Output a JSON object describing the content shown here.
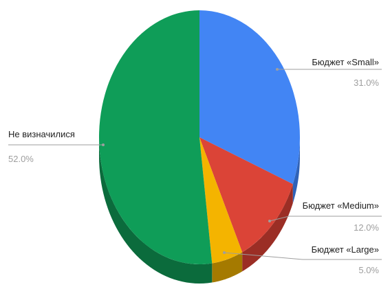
{
  "chart_data": {
    "type": "pie",
    "style": "3d",
    "title": "",
    "slices": [
      {
        "label": "Бюджет «Small»",
        "value": 31.0,
        "value_label": "31.0%",
        "color": "#4285f4",
        "side_color": "#2f62b8"
      },
      {
        "label": "Бюджет «Medium»",
        "value": 12.0,
        "value_label": "12.0%",
        "color": "#db4437",
        "side_color": "#9b2e25"
      },
      {
        "label": "Бюджет «Large»",
        "value": 5.0,
        "value_label": "5.0%",
        "color": "#f4b400",
        "side_color": "#a57a00"
      },
      {
        "label": "Не визначилися",
        "value": 52.0,
        "value_label": "52.0%",
        "color": "#0f9d58",
        "side_color": "#0b6b3c"
      }
    ],
    "start_angle": "top",
    "direction": "clockwise",
    "legend": "none",
    "leader_color": "#9e9e9e"
  }
}
